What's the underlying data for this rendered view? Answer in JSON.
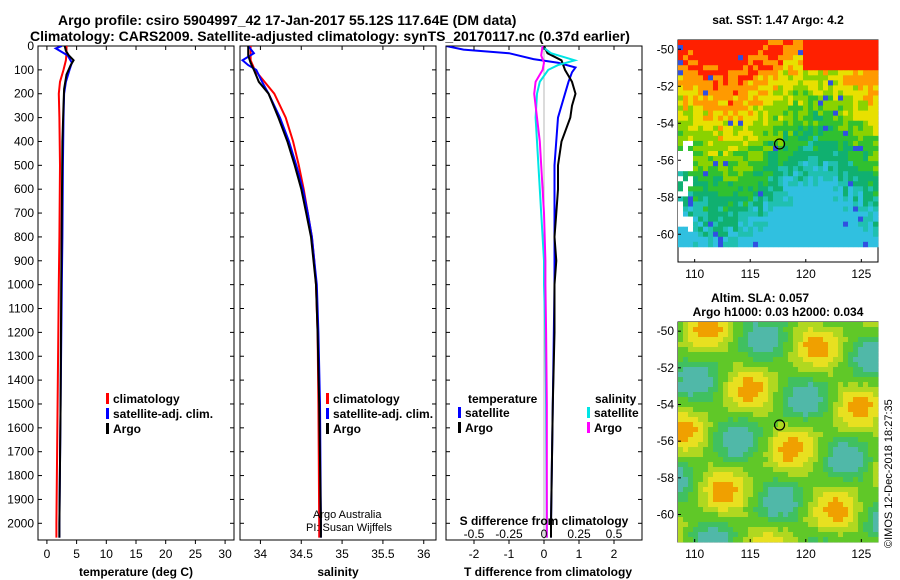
{
  "title_line1": "Argo profile: csiro 5904997_42 17-Jan-2017 55.12S 117.64E (DM data)",
  "title_line2": "Climatology: CARS2009. Satellite-adjusted climatology: synTS_20170117.nc (0.37d earlier)",
  "colors": {
    "climatology": "#ff0000",
    "satellite": "#0000ff",
    "argo": "#000000",
    "sat_salinity": "#00e5e5",
    "argo_salinity": "#ff00ff"
  },
  "credits": {
    "line1": "Argo Australia",
    "line2": "PI: Susan Wijffels"
  },
  "imos_stamp": "©IMOS 12-Dec-2018 18:27:35",
  "chart_data": [
    {
      "type": "line",
      "name": "temperature-profile",
      "xlabel": "temperature (deg C)",
      "ylabel": "",
      "xlim": [
        -1.5,
        31.5
      ],
      "ylim": [
        2070,
        0
      ],
      "xticks": [
        "0",
        "5",
        "10",
        "15",
        "20",
        "25",
        "30"
      ],
      "yticks": [
        "0",
        "100",
        "200",
        "300",
        "400",
        "500",
        "600",
        "700",
        "800",
        "900",
        "1000",
        "1100",
        "1200",
        "1300",
        "1400",
        "1500",
        "1600",
        "1700",
        "1800",
        "1900",
        "2000"
      ],
      "legend": [
        "climatology",
        "satellite-adj. clim.",
        "Argo"
      ],
      "series": [
        {
          "name": "climatology",
          "depth": [
            0,
            30,
            60,
            100,
            150,
            200,
            300,
            500,
            800,
            1000,
            1500,
            2000,
            2060
          ],
          "values": [
            3.3,
            3.3,
            3.2,
            2.8,
            2.2,
            2.0,
            2.1,
            2.2,
            2.1,
            2.0,
            1.8,
            1.6,
            1.6
          ]
        },
        {
          "name": "satellite-adj. clim.",
          "depth": [
            0,
            10,
            40,
            70,
            100,
            150,
            200,
            300,
            500,
            800,
            1000,
            1500,
            2000,
            2060
          ],
          "values": [
            2.5,
            1.5,
            3.5,
            4.2,
            3.8,
            3.2,
            2.9,
            2.8,
            2.7,
            2.6,
            2.5,
            2.3,
            2.1,
            2.1
          ]
        },
        {
          "name": "Argo",
          "depth": [
            0,
            20,
            40,
            60,
            80,
            120,
            180,
            250,
            400,
            700,
            1000,
            1500,
            2000,
            2060
          ],
          "values": [
            3.0,
            3.2,
            3.7,
            4.5,
            4.0,
            3.3,
            2.9,
            2.8,
            2.6,
            2.5,
            2.4,
            2.3,
            2.1,
            2.1
          ]
        }
      ]
    },
    {
      "type": "line",
      "name": "salinity-profile",
      "xlabel": "salinity",
      "xlim": [
        33.75,
        36.15
      ],
      "ylim": [
        2070,
        0
      ],
      "xticks": [
        "34",
        "34.5",
        "35",
        "35.5",
        "36"
      ],
      "legend": [
        "climatology",
        "satellite-adj. clim.",
        "Argo"
      ],
      "series": [
        {
          "name": "climatology",
          "depth": [
            0,
            60,
            100,
            150,
            200,
            300,
            400,
            500,
            600,
            700,
            800,
            900,
            1000,
            1200,
            1500,
            2000,
            2060
          ],
          "values": [
            33.88,
            33.88,
            33.93,
            34.05,
            34.17,
            34.31,
            34.4,
            34.47,
            34.53,
            34.58,
            34.63,
            34.66,
            34.68,
            34.7,
            34.71,
            34.72,
            34.72
          ]
        },
        {
          "name": "satellite-adj. clim.",
          "depth": [
            0,
            30,
            60,
            80,
            100,
            150,
            200,
            300,
            400,
            500,
            600,
            700,
            800,
            900,
            1000,
            1200,
            1500,
            2000,
            2060
          ],
          "values": [
            33.85,
            33.92,
            33.78,
            33.85,
            33.95,
            34.02,
            34.1,
            34.24,
            34.35,
            34.44,
            34.52,
            34.58,
            34.63,
            34.66,
            34.69,
            34.71,
            34.73,
            34.74,
            34.74
          ]
        },
        {
          "name": "Argo",
          "depth": [
            0,
            40,
            70,
            100,
            150,
            200,
            300,
            400,
            500,
            600,
            700,
            800,
            900,
            1000,
            1200,
            1500,
            2000,
            2060
          ],
          "values": [
            33.85,
            33.85,
            33.88,
            33.92,
            33.98,
            34.1,
            34.22,
            34.33,
            34.42,
            34.5,
            34.56,
            34.62,
            34.65,
            34.68,
            34.7,
            34.72,
            34.74,
            34.74
          ]
        }
      ]
    },
    {
      "type": "line",
      "name": "difference-profile",
      "xlabel": "T difference from climatology",
      "top_label": "S difference from climatology",
      "xlim": [
        -2.8,
        2.8
      ],
      "ylim": [
        2070,
        0
      ],
      "xticks": [
        "-2",
        "-1",
        "0",
        "1",
        "2"
      ],
      "top_ticks": [
        "-0.5",
        "-0.25",
        "0",
        "0.25",
        "0.5"
      ],
      "legend_left_title": "temperature",
      "legend_right_title": "salinity",
      "legend_left": [
        "satellite",
        "Argo"
      ],
      "legend_right": [
        "satellite",
        "Argo"
      ],
      "series": [
        {
          "name": "temperature-satellite",
          "depth": [
            0,
            15,
            30,
            55,
            70,
            90,
            110,
            150,
            200,
            300,
            500,
            800,
            1000,
            1500,
            2000,
            2060
          ],
          "values": [
            -2.8,
            -2.3,
            -1.0,
            -0.3,
            0.4,
            0.9,
            0.8,
            0.7,
            0.6,
            0.4,
            0.3,
            0.3,
            0.3,
            0.25,
            0.2,
            0.2
          ]
        },
        {
          "name": "temperature-Argo",
          "depth": [
            0,
            30,
            60,
            100,
            150,
            200,
            250,
            300,
            400,
            500,
            600,
            700,
            800,
            900,
            1000,
            1200,
            1500,
            2000,
            2060
          ],
          "values": [
            0.0,
            0.1,
            0.5,
            0.6,
            0.8,
            0.9,
            0.8,
            0.75,
            0.5,
            0.4,
            0.4,
            0.35,
            0.3,
            0.35,
            0.3,
            0.3,
            0.25,
            0.2,
            0.2
          ]
        },
        {
          "name": "salinity-satellite",
          "depth": [
            0,
            30,
            60,
            80,
            100,
            150,
            200,
            300,
            400,
            500,
            700,
            900,
            1000,
            1200,
            1500,
            2000,
            2060
          ],
          "values": [
            -0.02,
            0.05,
            0.22,
            0.1,
            0.03,
            -0.03,
            -0.05,
            -0.06,
            -0.05,
            -0.04,
            -0.02,
            0.0,
            0.0,
            0.01,
            0.015,
            0.02,
            0.02
          ]
        },
        {
          "name": "salinity-Argo",
          "depth": [
            0,
            40,
            70,
            100,
            150,
            200,
            300,
            400,
            500,
            700,
            900,
            1000,
            1200,
            1500,
            2000,
            2060
          ],
          "values": [
            -0.01,
            -0.02,
            0.0,
            -0.01,
            -0.06,
            -0.07,
            -0.05,
            -0.03,
            -0.02,
            0.0,
            0.01,
            0.01,
            0.015,
            0.02,
            0.02,
            0.02
          ]
        }
      ]
    },
    {
      "type": "heatmap",
      "name": "sst-map",
      "title": "sat. SST: 1.47 Argo: 4.2",
      "xlim": [
        108.5,
        126.5
      ],
      "ylim": [
        -61.5,
        -49.5
      ],
      "xticks": [
        "110",
        "115",
        "120",
        "125"
      ],
      "yticks": [
        "-50",
        "-52",
        "-54",
        "-56",
        "-58",
        "-60"
      ],
      "marker": {
        "lon": 117.64,
        "lat": -55.12
      }
    },
    {
      "type": "heatmap",
      "name": "sla-map",
      "title": "Altim. SLA: 0.057",
      "subtitle": "Argo h1000: 0.03 h2000: 0.034",
      "xlim": [
        108.5,
        126.5
      ],
      "ylim": [
        -61.5,
        -49.5
      ],
      "xticks": [
        "110",
        "115",
        "120",
        "125"
      ],
      "yticks": [
        "-50",
        "-52",
        "-54",
        "-56",
        "-58",
        "-60"
      ],
      "marker": {
        "lon": 117.64,
        "lat": -55.12
      }
    }
  ]
}
